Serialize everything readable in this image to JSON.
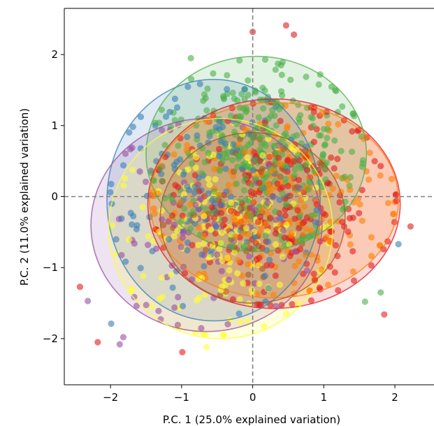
{
  "chart_data": {
    "type": "scatter",
    "title": "",
    "xlabel": "P.C. 1 (25.0% explained variation)",
    "ylabel": "P.C. 2 (11.0% explained variation)",
    "xlim": [
      -2.65,
      2.55
    ],
    "ylim": [
      -2.65,
      2.65
    ],
    "xticks": [
      -2,
      -1,
      0,
      1,
      2
    ],
    "yticks": [
      -2,
      -1,
      0,
      1,
      2
    ],
    "xtick_labels": [
      "−2",
      "−1",
      "0",
      "1",
      "2"
    ],
    "ytick_labels": [
      "−2",
      "−1",
      "0",
      "1",
      "2"
    ],
    "grid": false,
    "reference_lines": [
      {
        "orientation": "vertical",
        "value": 0,
        "style": "dashed",
        "color": "#808080"
      },
      {
        "orientation": "horizontal",
        "value": 0,
        "style": "dashed",
        "color": "#808080"
      }
    ],
    "series": [
      {
        "color": "#e41a1c",
        "ellipse": {
          "center": [
            0.3,
            -0.1
          ],
          "width": 3.55,
          "height": 2.95,
          "angle_deg": 0
        },
        "points_count": 230,
        "spread": [
          0.8,
          0.7
        ],
        "outliers": [
          [
            0.47,
            2.41
          ],
          [
            0.58,
            2.28
          ],
          [
            -2.43,
            -1.27
          ],
          [
            -2.18,
            -2.05
          ],
          [
            -0.99,
            -2.19
          ],
          [
            1.85,
            -1.66
          ],
          [
            2.22,
            -0.42
          ],
          [
            0.0,
            2.32
          ]
        ]
      },
      {
        "color": "#377eb8",
        "ellipse": {
          "center": [
            -0.55,
            -0.05
          ],
          "width": 3.0,
          "height": 3.4,
          "angle_deg": 0
        },
        "points_count": 130,
        "spread": [
          0.7,
          0.8
        ],
        "outliers": [
          [
            -1.99,
            -1.79
          ],
          [
            2.05,
            -0.67
          ]
        ]
      },
      {
        "color": "#4daf4a",
        "ellipse": {
          "center": [
            0.05,
            0.6
          ],
          "width": 3.1,
          "height": 2.75,
          "angle_deg": 0
        },
        "points_count": 330,
        "spread": [
          0.75,
          0.65
        ],
        "outliers": [
          [
            0.4,
            1.85
          ],
          [
            0.95,
            1.72
          ],
          [
            1.8,
            -1.35
          ],
          [
            1.58,
            -1.48
          ],
          [
            -0.87,
            1.95
          ]
        ]
      },
      {
        "color": "#984ea3",
        "ellipse": {
          "center": [
            -0.65,
            -0.4
          ],
          "width": 3.25,
          "height": 3.0,
          "angle_deg": 0
        },
        "points_count": 90,
        "spread": [
          0.75,
          0.7
        ],
        "outliers": [
          [
            -2.32,
            -1.47
          ],
          [
            -1.87,
            -2.08
          ],
          [
            -1.82,
            -1.98
          ]
        ]
      },
      {
        "color": "#ff7f00",
        "ellipse": {
          "center": [
            0.3,
            -0.05
          ],
          "width": 3.5,
          "height": 2.75,
          "angle_deg": 0
        },
        "points_count": 200,
        "spread": [
          0.8,
          0.65
        ],
        "outliers": []
      },
      {
        "color": "#ffff33",
        "ellipse": {
          "center": [
            -0.45,
            -0.45
          ],
          "width": 3.15,
          "height": 3.1,
          "angle_deg": 0
        },
        "points_count": 170,
        "spread": [
          0.7,
          0.7
        ],
        "outliers": [
          [
            -0.65,
            -2.12
          ]
        ]
      },
      {
        "color": "#a65628",
        "ellipse": {
          "center": [
            0.0,
            -0.3
          ],
          "width": 2.6,
          "height": 2.4,
          "angle_deg": 0
        },
        "points_count": 50,
        "spread": [
          0.65,
          0.6
        ],
        "outliers": []
      }
    ]
  }
}
